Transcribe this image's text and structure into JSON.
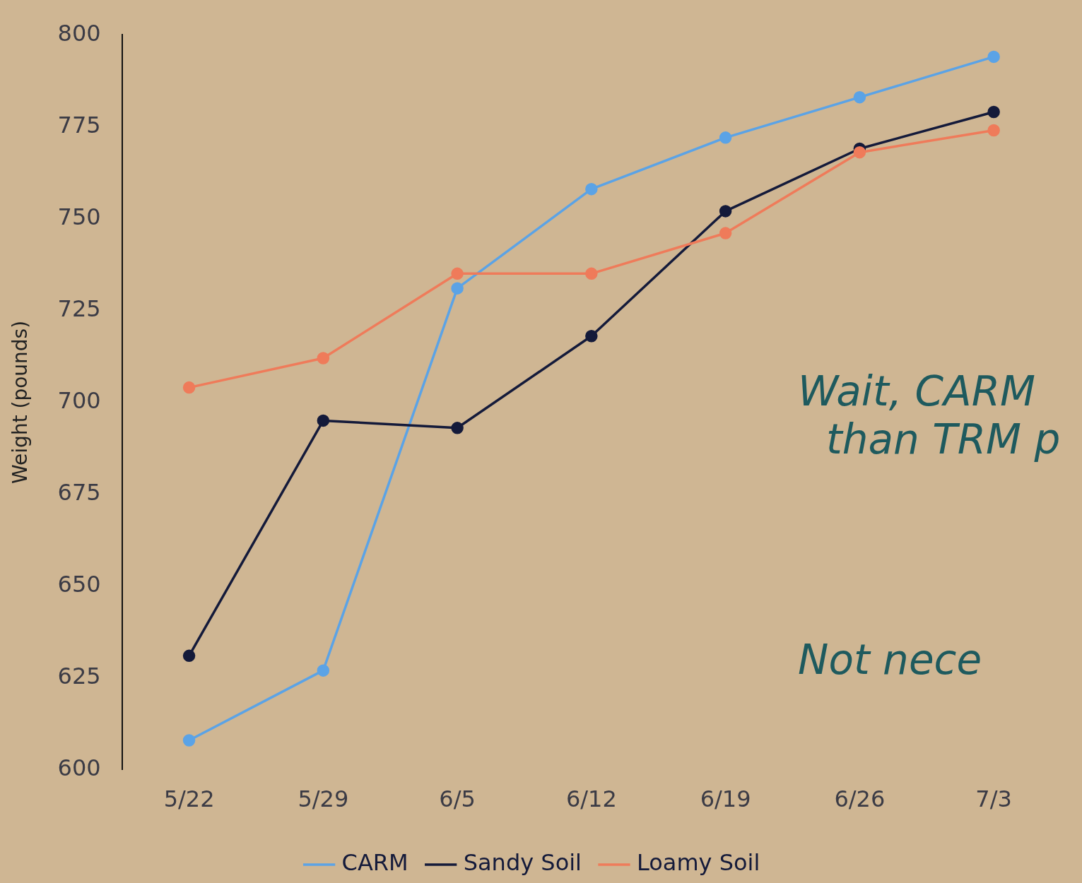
{
  "chart_data": {
    "type": "line",
    "ylabel": "Weight (pounds)",
    "categories": [
      "5/22",
      "5/29",
      "6/5",
      "6/12",
      "6/19",
      "6/26",
      "7/3"
    ],
    "series": [
      {
        "name": "CARM",
        "color": "#5ba3e6",
        "values": [
          608,
          627,
          731,
          758,
          772,
          783,
          794
        ]
      },
      {
        "name": "Sandy Soil",
        "color": "#141a3a",
        "values": [
          631,
          695,
          693,
          718,
          752,
          769,
          779
        ]
      },
      {
        "name": "Loamy Soil",
        "color": "#ef7b5a",
        "values": [
          704,
          712,
          735,
          735,
          746,
          768,
          774
        ]
      }
    ],
    "ylim": [
      600,
      800
    ],
    "yticks": [
      600,
      625,
      650,
      675,
      700,
      725,
      750,
      775,
      800
    ],
    "annotations": [
      "Wait, CARM",
      "than TRM p",
      "Not nece"
    ],
    "grid": false,
    "legend": "bottom",
    "marker": "circle",
    "line_style": "solid"
  }
}
